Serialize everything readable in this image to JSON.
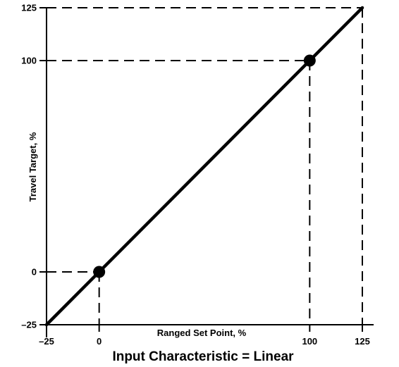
{
  "chart_data": {
    "type": "line",
    "title": "Input Characteristic = Linear",
    "xlabel": "Ranged Set Point, %",
    "ylabel": "Travel Target, %",
    "xlim": [
      -25,
      125
    ],
    "ylim": [
      -25,
      125
    ],
    "x_ticks": [
      -25,
      0,
      100,
      125
    ],
    "y_ticks": [
      -25,
      0,
      100,
      125
    ],
    "x_tick_labels": [
      "–25",
      "0",
      "100",
      "125"
    ],
    "y_tick_labels": [
      "–25",
      "0",
      "100",
      "125"
    ],
    "series": [
      {
        "x": [
          -25,
          125
        ],
        "y": [
          -25,
          125
        ]
      }
    ],
    "markers": [
      {
        "x": 0,
        "y": 0
      },
      {
        "x": 100,
        "y": 100
      }
    ],
    "reference_lines": [
      {
        "x": 0,
        "y": 0
      },
      {
        "x": 100,
        "y": 100
      },
      {
        "x": 125,
        "y": 125
      }
    ],
    "grid": false,
    "colors": {
      "line": "#000000",
      "marker": "#000000",
      "axes": "#000000",
      "background": "#ffffff"
    }
  }
}
